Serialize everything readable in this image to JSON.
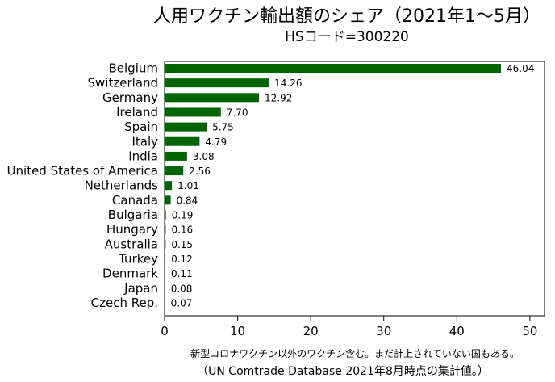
{
  "chart_data": {
    "type": "bar",
    "orientation": "horizontal",
    "title": "人用ワクチン輸出額のシェア（2021年1〜5月）",
    "subtitle": "HSコード=300220",
    "categories": [
      "Belgium",
      "Switzerland",
      "Germany",
      "Ireland",
      "Spain",
      "Italy",
      "India",
      "United States of America",
      "Netherlands",
      "Canada",
      "Bulgaria",
      "Hungary",
      "Australia",
      "Turkey",
      "Denmark",
      "Japan",
      "Czech Rep."
    ],
    "values": [
      46.04,
      14.26,
      12.92,
      7.7,
      5.75,
      4.79,
      3.08,
      2.56,
      1.01,
      0.84,
      0.19,
      0.16,
      0.15,
      0.12,
      0.11,
      0.08,
      0.07
    ],
    "value_labels": [
      "46.04",
      "14.26",
      "12.92",
      "7.70",
      "5.75",
      "4.79",
      "3.08",
      "2.56",
      "1.01",
      "0.84",
      "0.19",
      "0.16",
      "0.15",
      "0.12",
      "0.11",
      "0.08",
      "0.07"
    ],
    "xlim": [
      0,
      52
    ],
    "xticks": [
      0,
      10,
      20,
      30,
      40,
      50
    ],
    "xtick_labels": [
      "0",
      "10",
      "20",
      "30",
      "40",
      "50"
    ],
    "xlabel": "",
    "ylabel": "",
    "grid": false,
    "bar_color": "#006400",
    "notes": [
      "新型コロナワクチン以外のワクチン含む。まだ計上されていない国もある。",
      "（UN Comtrade Database 2021年8月時点の集計値。）"
    ]
  }
}
